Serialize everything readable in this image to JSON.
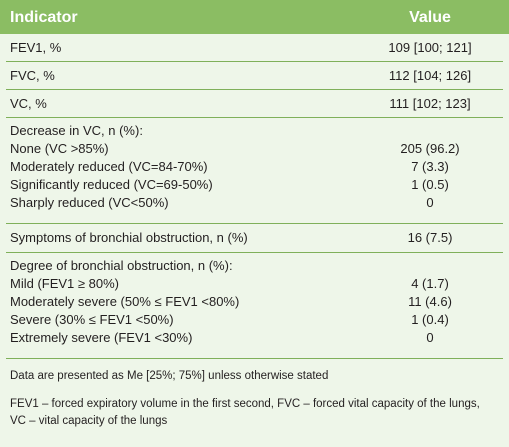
{
  "header": {
    "indicator": "Indicator",
    "value": "Value"
  },
  "rows": {
    "fev1": {
      "label": "FEV1, %",
      "value": "109 [100; 121]"
    },
    "fvc": {
      "label": "FVC, %",
      "value": "112 [104; 126]"
    },
    "vc": {
      "label": "VC, %",
      "value": "111 [102; 123]"
    }
  },
  "decrease": {
    "title": "Decrease in VC, n (%):",
    "items": [
      {
        "label": "None (VC >85%)",
        "value": "205 (96.2)"
      },
      {
        "label": "Moderately reduced (VC=84-70%)",
        "value": "7 (3.3)"
      },
      {
        "label": "Significantly reduced (VC=69-50%)",
        "value": "1 (0.5)"
      },
      {
        "label": "Sharply reduced (VC<50%)",
        "value": "0"
      }
    ]
  },
  "symptoms": {
    "label": "Symptoms of bronchial obstruction, n (%)",
    "value": "16 (7.5)"
  },
  "degree": {
    "title": "Degree of bronchial obstruction, n (%):",
    "items": [
      {
        "label": "Mild (FEV1 ≥ 80%)",
        "value": "4 (1.7)"
      },
      {
        "label": "Moderately severe (50% ≤ FEV1 <80%)",
        "value": "11 (4.6)"
      },
      {
        "label": "Severe (30% ≤ FEV1 <50%)",
        "value": "1 (0.4)"
      },
      {
        "label": "Extremely severe (FEV1 <30%)",
        "value": "0"
      }
    ]
  },
  "notes": {
    "data_note": "Data are presented as Me [25%; 75%] unless otherwise stated",
    "abbrev_line1": "FEV1 – forced expiratory volume in the first second, FVC – forced vital capacity of the lungs,",
    "abbrev_line2": "VC – vital capacity of the lungs"
  }
}
